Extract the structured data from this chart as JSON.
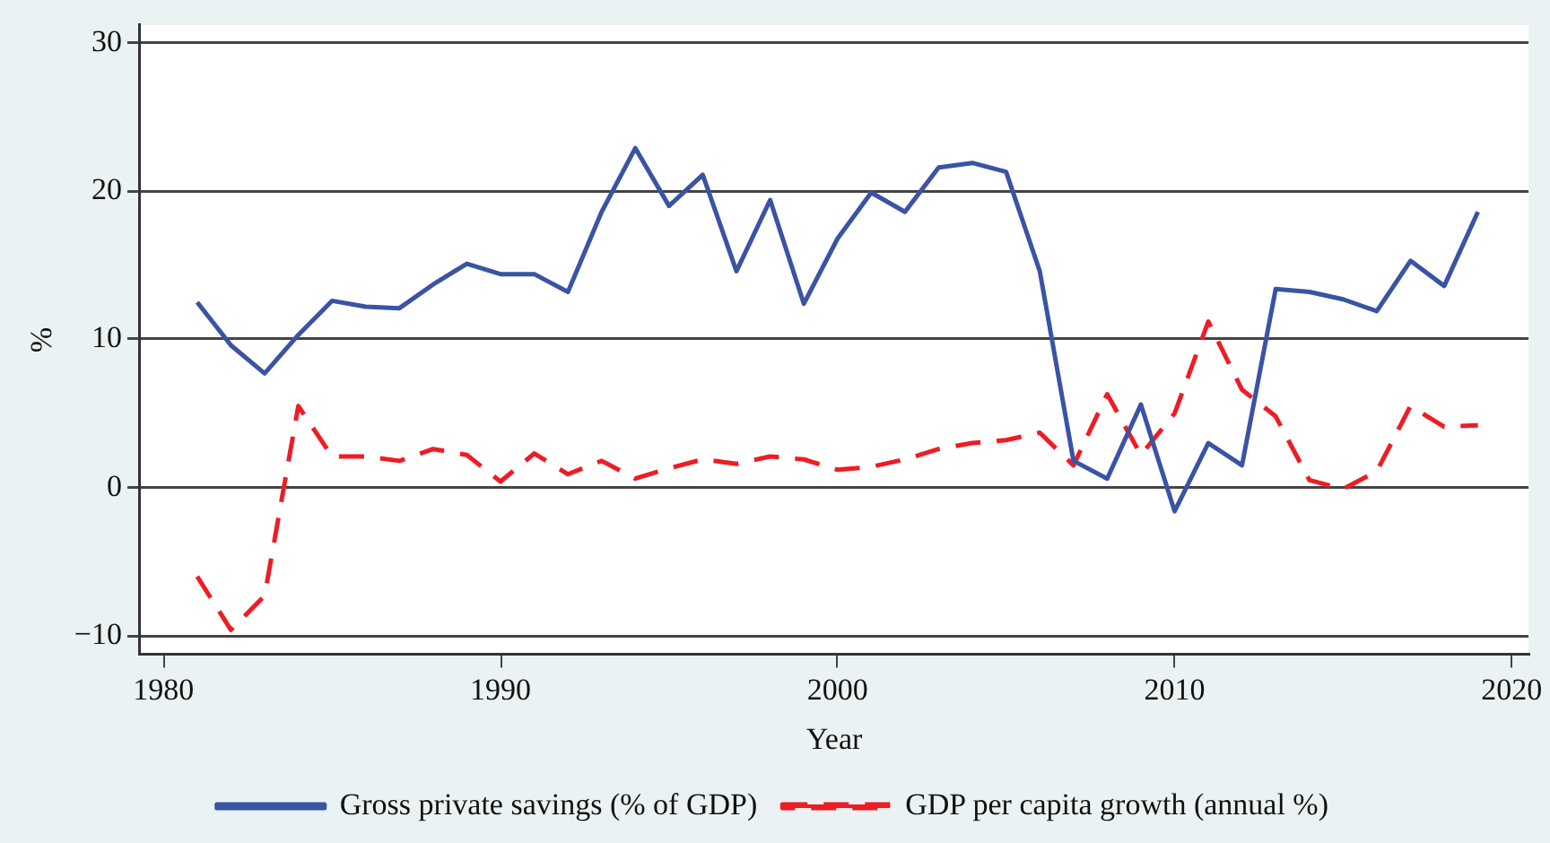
{
  "chart_data": {
    "type": "line",
    "xlabel": "Year",
    "ylabel": "%",
    "x": [
      1981,
      1982,
      1983,
      1984,
      1985,
      1986,
      1987,
      1988,
      1989,
      1990,
      1991,
      1992,
      1993,
      1994,
      1995,
      1996,
      1997,
      1998,
      1999,
      2000,
      2001,
      2002,
      2003,
      2004,
      2005,
      2006,
      2007,
      2008,
      2009,
      2010,
      2011,
      2012,
      2013,
      2014,
      2015,
      2016,
      2017,
      2018,
      2019
    ],
    "series": [
      {
        "name": "Gross private savings (% of GDP)",
        "color": "#3a53a4",
        "line_style": "solid",
        "values": [
          12.5,
          9.6,
          7.7,
          10.3,
          12.6,
          12.2,
          12.1,
          13.7,
          15.1,
          14.4,
          14.4,
          13.2,
          18.6,
          22.9,
          19.0,
          21.1,
          14.6,
          19.4,
          12.4,
          16.8,
          19.9,
          18.6,
          21.6,
          21.9,
          21.3,
          14.6,
          1.8,
          0.6,
          5.6,
          -1.6,
          3.0,
          1.5,
          13.4,
          13.2,
          12.7,
          11.9,
          15.3,
          13.6,
          18.6
        ]
      },
      {
        "name": "GDP per capita growth (annual %)",
        "color": "#ee1c25",
        "line_style": "dashed",
        "values": [
          -6.0,
          -9.6,
          -7.3,
          5.5,
          2.1,
          2.1,
          1.8,
          2.6,
          2.2,
          0.4,
          2.3,
          0.9,
          1.8,
          0.6,
          1.3,
          1.9,
          1.6,
          2.1,
          1.9,
          1.2,
          1.4,
          1.9,
          2.6,
          3.0,
          3.2,
          3.7,
          1.5,
          6.3,
          2.2,
          5.0,
          11.2,
          6.6,
          4.8,
          0.5,
          -0.1,
          1.1,
          5.5,
          4.1,
          4.2
        ]
      }
    ],
    "xlim": [
      1979.3,
      2020.5
    ],
    "xticks": [
      1980,
      1990,
      2000,
      2010,
      2020
    ],
    "ylim": [
      -11.3,
      31.2
    ],
    "yticks": [
      {
        "value": -10,
        "label": "−10"
      },
      0,
      10,
      20,
      30
    ],
    "grid": "y",
    "legend": "bottom",
    "marker": "none"
  }
}
